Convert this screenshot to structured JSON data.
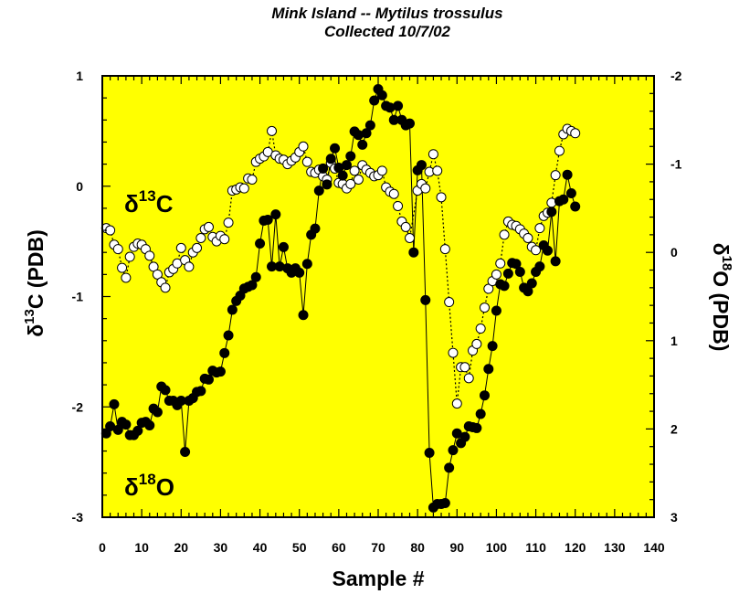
{
  "chart_data": {
    "type": "scatter",
    "title": "Mink Island -- Mytilus trossulus",
    "subtitle": "Collected 10/7/02",
    "xlabel": "Sample #",
    "ylabel_left": {
      "symbol": "δ",
      "sup": "13",
      "rest": "C (PDB)"
    },
    "ylabel_right": {
      "symbol": "δ",
      "sup": "18",
      "rest": "O (PDB)"
    },
    "xlim": [
      0,
      140
    ],
    "xticks": [
      "0",
      "10",
      "20",
      "30",
      "40",
      "50",
      "60",
      "70",
      "80",
      "90",
      "100",
      "110",
      "120",
      "130",
      "140"
    ],
    "ylim_left": [
      -3,
      1
    ],
    "yticks_left": [
      "1",
      "0",
      "-1",
      "-2",
      "-3"
    ],
    "ylim_right": [
      3,
      -2
    ],
    "yticks_right": [
      "-2",
      "-1",
      "0",
      "1",
      "2",
      "3"
    ],
    "background_color": "#ffff00",
    "grid": false,
    "series_labels": {
      "d13c": {
        "symbol": "δ",
        "sup": "13",
        "rest": "C"
      },
      "d18o": {
        "symbol": "δ",
        "sup": "18",
        "rest": "O"
      }
    },
    "series": [
      {
        "name": "δ13C",
        "axis": "left",
        "marker": "open-circle",
        "line": "dotted",
        "points": [
          [
            1,
            -0.38
          ],
          [
            2,
            -0.4
          ],
          [
            3,
            -0.53
          ],
          [
            4,
            -0.57
          ],
          [
            5,
            -0.74
          ],
          [
            6,
            -0.83
          ],
          [
            7,
            -0.64
          ],
          [
            8,
            -0.55
          ],
          [
            9,
            -0.52
          ],
          [
            10,
            -0.53
          ],
          [
            11,
            -0.57
          ],
          [
            12,
            -0.63
          ],
          [
            13,
            -0.73
          ],
          [
            14,
            -0.8
          ],
          [
            15,
            -0.87
          ],
          [
            16,
            -0.92
          ],
          [
            17,
            -0.78
          ],
          [
            18,
            -0.75
          ],
          [
            19,
            -0.7
          ],
          [
            20,
            -0.56
          ],
          [
            21,
            -0.67
          ],
          [
            22,
            -0.73
          ],
          [
            23,
            -0.6
          ],
          [
            24,
            -0.56
          ],
          [
            25,
            -0.47
          ],
          [
            26,
            -0.39
          ],
          [
            27,
            -0.37
          ],
          [
            28,
            -0.46
          ],
          [
            29,
            -0.5
          ],
          [
            30,
            -0.45
          ],
          [
            31,
            -0.48
          ],
          [
            32,
            -0.33
          ],
          [
            33,
            -0.04
          ],
          [
            34,
            -0.03
          ],
          [
            35,
            -0.01
          ],
          [
            36,
            -0.02
          ],
          [
            37,
            0.07
          ],
          [
            38,
            0.06
          ],
          [
            39,
            0.22
          ],
          [
            40,
            0.25
          ],
          [
            41,
            0.27
          ],
          [
            42,
            0.31
          ],
          [
            43,
            0.5
          ],
          [
            44,
            0.28
          ],
          [
            45,
            0.25
          ],
          [
            46,
            0.24
          ],
          [
            47,
            0.2
          ],
          [
            48,
            0.23
          ],
          [
            49,
            0.26
          ],
          [
            50,
            0.31
          ],
          [
            51,
            0.36
          ],
          [
            52,
            0.22
          ],
          [
            53,
            0.13
          ],
          [
            54,
            0.12
          ],
          [
            55,
            0.15
          ],
          [
            56,
            0.09
          ],
          [
            57,
            0.06
          ],
          [
            58,
            0.21
          ],
          [
            59,
            0.16
          ],
          [
            60,
            0.03
          ],
          [
            61,
            0.02
          ],
          [
            62,
            -0.02
          ],
          [
            63,
            0.02
          ],
          [
            64,
            0.14
          ],
          [
            65,
            0.06
          ],
          [
            66,
            0.19
          ],
          [
            67,
            0.15
          ],
          [
            68,
            0.12
          ],
          [
            69,
            0.09
          ],
          [
            70,
            0.1
          ],
          [
            71,
            0.14
          ],
          [
            72,
            -0.01
          ],
          [
            73,
            -0.05
          ],
          [
            74,
            -0.07
          ],
          [
            75,
            -0.18
          ],
          [
            76,
            -0.32
          ],
          [
            77,
            -0.37
          ],
          [
            78,
            -0.47
          ],
          [
            80,
            -0.04
          ],
          [
            81,
            0.02
          ],
          [
            82,
            -0.02
          ],
          [
            83,
            0.13
          ],
          [
            84,
            0.29
          ],
          [
            85,
            0.14
          ],
          [
            86,
            -0.1
          ],
          [
            87,
            -0.57
          ],
          [
            88,
            -1.05
          ],
          [
            89,
            -1.51
          ],
          [
            90,
            -1.97
          ],
          [
            91,
            -1.64
          ],
          [
            92,
            -1.64
          ],
          [
            93,
            -1.74
          ],
          [
            94,
            -1.49
          ],
          [
            95,
            -1.43
          ],
          [
            96,
            -1.29
          ],
          [
            97,
            -1.1
          ],
          [
            98,
            -0.93
          ],
          [
            99,
            -0.86
          ],
          [
            100,
            -0.8
          ],
          [
            101,
            -0.7
          ],
          [
            102,
            -0.44
          ],
          [
            103,
            -0.32
          ],
          [
            104,
            -0.35
          ],
          [
            105,
            -0.36
          ],
          [
            106,
            -0.39
          ],
          [
            107,
            -0.43
          ],
          [
            108,
            -0.47
          ],
          [
            109,
            -0.55
          ],
          [
            110,
            -0.58
          ],
          [
            111,
            -0.38
          ],
          [
            112,
            -0.27
          ],
          [
            113,
            -0.24
          ],
          [
            114,
            -0.15
          ],
          [
            115,
            0.1
          ],
          [
            116,
            0.32
          ],
          [
            117,
            0.47
          ],
          [
            118,
            0.52
          ],
          [
            119,
            0.5
          ],
          [
            120,
            0.48
          ]
        ]
      },
      {
        "name": "δ18O",
        "axis": "right",
        "marker": "filled-circle",
        "line": "solid",
        "points": [
          [
            1,
            2.05
          ],
          [
            2,
            1.97
          ],
          [
            3,
            1.72
          ],
          [
            4,
            2.01
          ],
          [
            5,
            1.92
          ],
          [
            6,
            1.95
          ],
          [
            7,
            2.07
          ],
          [
            8,
            2.07
          ],
          [
            9,
            2.02
          ],
          [
            10,
            1.93
          ],
          [
            11,
            1.92
          ],
          [
            12,
            1.96
          ],
          [
            13,
            1.77
          ],
          [
            14,
            1.81
          ],
          [
            15,
            1.52
          ],
          [
            16,
            1.56
          ],
          [
            17,
            1.68
          ],
          [
            18,
            1.68
          ],
          [
            19,
            1.73
          ],
          [
            20,
            1.68
          ],
          [
            21,
            2.26
          ],
          [
            22,
            1.68
          ],
          [
            23,
            1.65
          ],
          [
            24,
            1.58
          ],
          [
            25,
            1.57
          ],
          [
            26,
            1.43
          ],
          [
            27,
            1.44
          ],
          [
            28,
            1.34
          ],
          [
            29,
            1.36
          ],
          [
            30,
            1.35
          ],
          [
            31,
            1.14
          ],
          [
            32,
            0.94
          ],
          [
            33,
            0.65
          ],
          [
            34,
            0.55
          ],
          [
            35,
            0.49
          ],
          [
            36,
            0.41
          ],
          [
            37,
            0.39
          ],
          [
            38,
            0.37
          ],
          [
            39,
            0.28
          ],
          [
            40,
            -0.1
          ],
          [
            41,
            -0.36
          ],
          [
            42,
            -0.37
          ],
          [
            43,
            0.16
          ],
          [
            44,
            -0.43
          ],
          [
            45,
            0.16
          ],
          [
            46,
            -0.06
          ],
          [
            47,
            0.18
          ],
          [
            48,
            0.23
          ],
          [
            49,
            0.18
          ],
          [
            50,
            0.23
          ],
          [
            51,
            0.71
          ],
          [
            52,
            0.13
          ],
          [
            53,
            -0.2
          ],
          [
            54,
            -0.27
          ],
          [
            55,
            -0.7
          ],
          [
            56,
            -0.95
          ],
          [
            57,
            -0.77
          ],
          [
            58,
            -1.06
          ],
          [
            59,
            -1.18
          ],
          [
            60,
            -0.96
          ],
          [
            61,
            -0.87
          ],
          [
            62,
            -0.99
          ],
          [
            63,
            -1.09
          ],
          [
            64,
            -1.37
          ],
          [
            65,
            -1.33
          ],
          [
            66,
            -1.22
          ],
          [
            67,
            -1.35
          ],
          [
            68,
            -1.44
          ],
          [
            69,
            -1.72
          ],
          [
            70,
            -1.85
          ],
          [
            71,
            -1.78
          ],
          [
            72,
            -1.66
          ],
          [
            73,
            -1.64
          ],
          [
            74,
            -1.5
          ],
          [
            75,
            -1.66
          ],
          [
            76,
            -1.5
          ],
          [
            77,
            -1.44
          ],
          [
            78,
            -1.46
          ],
          [
            79,
            0
          ],
          [
            80,
            -0.93
          ],
          [
            81,
            -0.99
          ],
          [
            82,
            0.54
          ],
          [
            83,
            2.27
          ],
          [
            84,
            2.89
          ],
          [
            85,
            2.85
          ],
          [
            86,
            2.85
          ],
          [
            87,
            2.84
          ],
          [
            88,
            2.44
          ],
          [
            89,
            2.24
          ],
          [
            90,
            2.05
          ],
          [
            91,
            2.16
          ],
          [
            92,
            2.09
          ],
          [
            93,
            1.97
          ],
          [
            94,
            1.98
          ],
          [
            95,
            1.99
          ],
          [
            96,
            1.83
          ],
          [
            97,
            1.62
          ],
          [
            98,
            1.32
          ],
          [
            99,
            1.06
          ],
          [
            100,
            0.66
          ],
          [
            101,
            0.36
          ],
          [
            102,
            0.38
          ],
          [
            103,
            0.24
          ],
          [
            104,
            0.12
          ],
          [
            105,
            0.13
          ],
          [
            106,
            0.22
          ],
          [
            107,
            0.4
          ],
          [
            108,
            0.44
          ],
          [
            109,
            0.35
          ],
          [
            110,
            0.22
          ],
          [
            111,
            0.16
          ],
          [
            112,
            -0.08
          ],
          [
            113,
            -0.02
          ],
          [
            114,
            -0.46
          ],
          [
            115,
            0.1
          ],
          [
            116,
            -0.58
          ],
          [
            117,
            -0.6
          ],
          [
            118,
            -0.88
          ],
          [
            119,
            -0.67
          ],
          [
            120,
            -0.52
          ]
        ]
      }
    ]
  }
}
